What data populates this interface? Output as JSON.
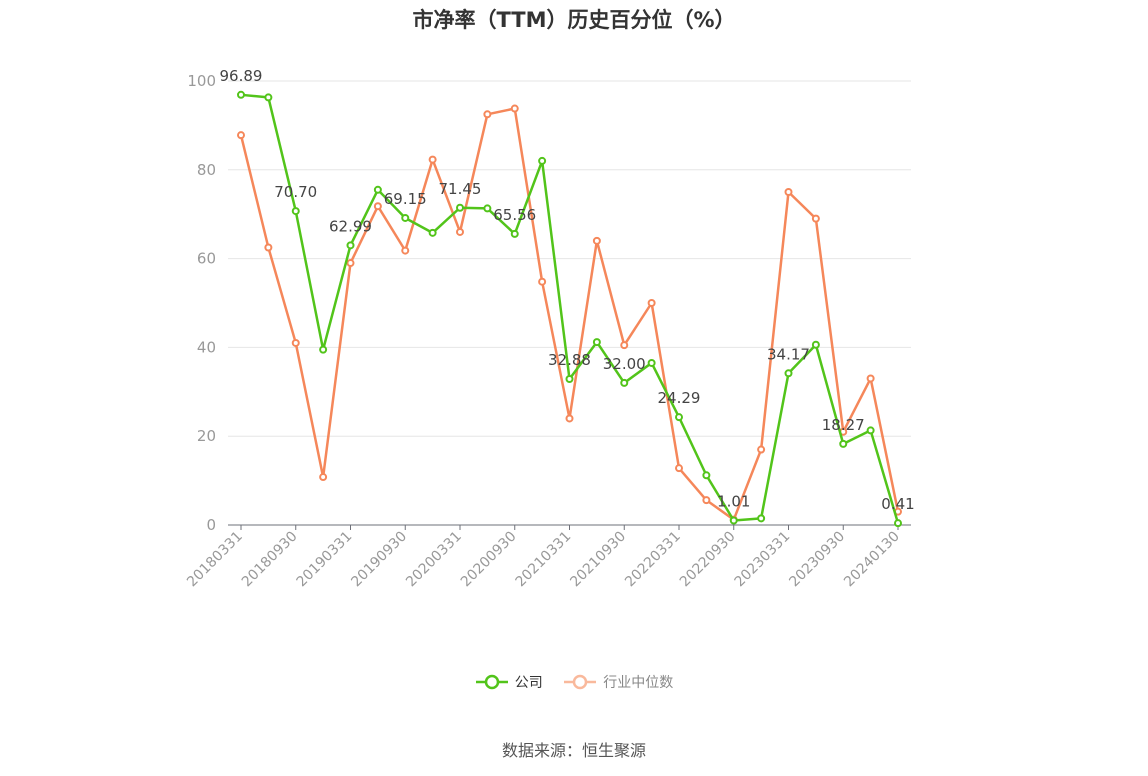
{
  "title": "市净率（TTM）历史百分位（%）",
  "source": "数据来源：恒生聚源",
  "colors": {
    "company": "#52c41a",
    "industry": "#f5875a",
    "grid": "#e6e6e6",
    "axis": "#6e7079"
  },
  "chart_data": {
    "type": "line",
    "title": "市净率（TTM）历史百分位（%）",
    "ylim": [
      0,
      100
    ],
    "y_ticks": [
      0,
      20,
      40,
      60,
      80,
      100
    ],
    "x": [
      "20180331",
      "20180630",
      "20180930",
      "20181231",
      "20190331",
      "20190630",
      "20190930",
      "20191231",
      "20200331",
      "20200630",
      "20200930",
      "20201231",
      "20210331",
      "20210630",
      "20210930",
      "20211231",
      "20220331",
      "20220630",
      "20220930",
      "20221231",
      "20230331",
      "20230630",
      "20230930",
      "20231231",
      "20240130"
    ],
    "x_tick_labels": [
      "20180331",
      "20180930",
      "20190331",
      "20190930",
      "20200331",
      "20200930",
      "20210331",
      "20210930",
      "20220331",
      "20220930",
      "20230331",
      "20230930",
      "20240130"
    ],
    "legend_position": "bottom",
    "grid": true,
    "series": [
      {
        "name": "公司",
        "color": "#52c41a",
        "values": [
          96.89,
          96.3,
          70.7,
          39.5,
          62.99,
          75.5,
          69.15,
          65.8,
          71.45,
          71.3,
          65.56,
          82.0,
          32.88,
          41.2,
          32.0,
          36.5,
          24.29,
          11.2,
          1.01,
          1.5,
          34.17,
          40.6,
          18.27,
          21.3,
          0.41
        ],
        "labels": {
          "0": "96.89",
          "2": "70.70",
          "4": "62.99",
          "6": "69.15",
          "8": "71.45",
          "10": "65.56",
          "12": "32.88",
          "14": "32.00",
          "16": "24.29",
          "18": "1.01",
          "20": "34.17",
          "22": "18.27",
          "24": "0.41"
        }
      },
      {
        "name": "行业中位数",
        "color": "#f5875a",
        "values": [
          87.8,
          62.5,
          41.0,
          10.8,
          59.0,
          71.8,
          61.8,
          82.3,
          66.0,
          92.5,
          93.8,
          54.8,
          24.0,
          64.0,
          40.5,
          50.0,
          12.8,
          5.6,
          1.2,
          17.0,
          75.0,
          69.0,
          21.0,
          33.0,
          3.0
        ]
      }
    ]
  }
}
